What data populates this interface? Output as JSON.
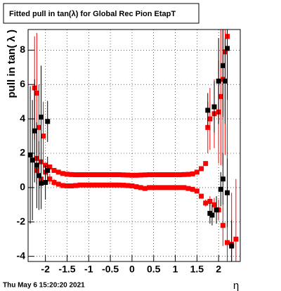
{
  "chart_data": {
    "type": "scatter",
    "title": "Fitted pull in tan(λ) for Global Rec Pion EtapT",
    "y_label": "pull in tan( λ )",
    "x_label": "η",
    "footer": "Thu May  6 15:20:20 2021",
    "xlim": [
      -2.4,
      2.5
    ],
    "ylim": [
      -4.3,
      9.2
    ],
    "xticks": [
      -2,
      -1.5,
      -1,
      -0.5,
      0,
      0.5,
      1,
      1.5,
      2
    ],
    "yticks": [
      -4,
      -2,
      0,
      2,
      4,
      6,
      8
    ],
    "grid": true,
    "series": [
      {
        "color": "#ff0000",
        "x": [
          -2.2,
          -2.1,
          -2.0,
          -1.9,
          -1.8,
          -1.7,
          -1.6,
          -1.5,
          -1.4,
          -1.3,
          -1.2,
          -1.1,
          -1.0,
          -0.9,
          -0.8,
          -0.7,
          -0.6,
          -0.5,
          -0.4,
          -0.3,
          -0.2,
          -0.1,
          0.0,
          0.1,
          0.2,
          0.3,
          0.4,
          0.5,
          0.6,
          0.7,
          0.8,
          0.9,
          1.0,
          1.1,
          1.2,
          1.3,
          1.4,
          1.5,
          1.6,
          1.7
        ],
        "values": [
          1.7,
          1.5,
          1.3,
          1.2,
          1.0,
          0.9,
          0.82,
          0.78,
          0.76,
          0.75,
          0.75,
          0.75,
          0.75,
          0.75,
          0.75,
          0.75,
          0.75,
          0.75,
          0.75,
          0.75,
          0.74,
          0.73,
          0.72,
          0.72,
          0.73,
          0.74,
          0.75,
          0.75,
          0.75,
          0.75,
          0.75,
          0.75,
          0.75,
          0.75,
          0.76,
          0.77,
          0.8,
          0.9,
          1.1,
          1.4
        ]
      },
      {
        "color": "#ff0000",
        "x": [
          -2.2,
          -2.1,
          -2.0,
          -1.9,
          -1.8,
          -1.7,
          -1.6,
          -1.5,
          -1.4,
          -1.3,
          -1.2,
          -1.1,
          -1.0,
          -0.9,
          -0.8,
          -0.7,
          -0.6,
          -0.5,
          -0.4,
          -0.3,
          -0.2,
          -0.1,
          0.0,
          0.1,
          0.2,
          0.3,
          0.4,
          0.5,
          0.6,
          0.7,
          0.8,
          0.9,
          1.0,
          1.1,
          1.2,
          1.3,
          1.4,
          1.5,
          1.6,
          1.7,
          1.8,
          1.9,
          2.0,
          2.1,
          2.2,
          2.3,
          2.4
        ],
        "values": [
          1.0,
          0.5,
          0.9,
          0.5,
          0.3,
          0.2,
          0.12,
          0.1,
          0.1,
          0.12,
          0.15,
          0.15,
          0.15,
          0.15,
          0.15,
          0.15,
          0.15,
          0.15,
          0.15,
          0.15,
          0.14,
          0.12,
          0.1,
          0.05,
          0.0,
          -0.05,
          0.0,
          0.0,
          0.0,
          0.0,
          0.0,
          0.0,
          0.0,
          0.0,
          0.0,
          -0.05,
          -0.1,
          -0.2,
          -0.5,
          -0.9,
          -0.8,
          -1.0,
          -1.3,
          -2.2,
          -3.2,
          -3.3,
          -3.0
        ],
        "errors": [
          0.8,
          0.6,
          0.4,
          0.3,
          0.2,
          0.1,
          0.1,
          0.1,
          0.05,
          0.05,
          0.05,
          0.05,
          0.05,
          0.05,
          0.05,
          0.05,
          0.05,
          0.05,
          0.05,
          0.05,
          0.05,
          0.05,
          0.05,
          0.05,
          0.05,
          0.05,
          0.05,
          0.05,
          0.05,
          0.05,
          0.05,
          0.05,
          0.05,
          0.05,
          0.05,
          0.05,
          0.05,
          0.1,
          0.1,
          0.2,
          0.3,
          0.4,
          0.6,
          1.2,
          2.5,
          3.0,
          3.5
        ]
      },
      {
        "color": "#ff0000",
        "x": [
          -2.25,
          -2.2,
          -2.15,
          -2.05,
          1.75,
          1.8,
          1.9,
          2.0,
          2.05,
          2.1,
          2.15,
          2.2
        ],
        "values": [
          5.8,
          5.5,
          3.5,
          3.0,
          3.5,
          4.0,
          4.3,
          4.4,
          5.3,
          6.3,
          7.9,
          8.8
        ],
        "errors": [
          3.0,
          3.5,
          2.5,
          2.0,
          1.5,
          1.8,
          2.0,
          3.0,
          4.0,
          5.0,
          6.0,
          8.0
        ]
      },
      {
        "color": "#000000",
        "x": [
          -2.35,
          -2.3,
          -2.25,
          -2.2,
          -2.15,
          -2.1,
          -2.1,
          -2.0,
          -1.95,
          -1.95,
          1.75,
          1.8,
          1.85,
          1.9,
          1.95,
          2.0,
          2.05,
          2.1,
          2.1,
          2.15,
          2.2,
          2.2,
          2.3
        ],
        "values": [
          1.9,
          1.6,
          3.3,
          1.3,
          0.7,
          4.1,
          0.25,
          0.3,
          3.85,
          1.0,
          4.5,
          -1.5,
          -1.6,
          4.7,
          -1.3,
          6.2,
          -0.1,
          7.1,
          0.5,
          6.2,
          8.1,
          -0.3,
          -3.4
        ],
        "errors": [
          4.0,
          3.5,
          3.0,
          2.5,
          2.0,
          3.0,
          1.5,
          1.0,
          1.2,
          0.8,
          1.0,
          0.6,
          0.6,
          1.5,
          0.8,
          2.5,
          1.0,
          3.0,
          1.5,
          2.5,
          3.0,
          2.0,
          1.5
        ]
      }
    ]
  }
}
